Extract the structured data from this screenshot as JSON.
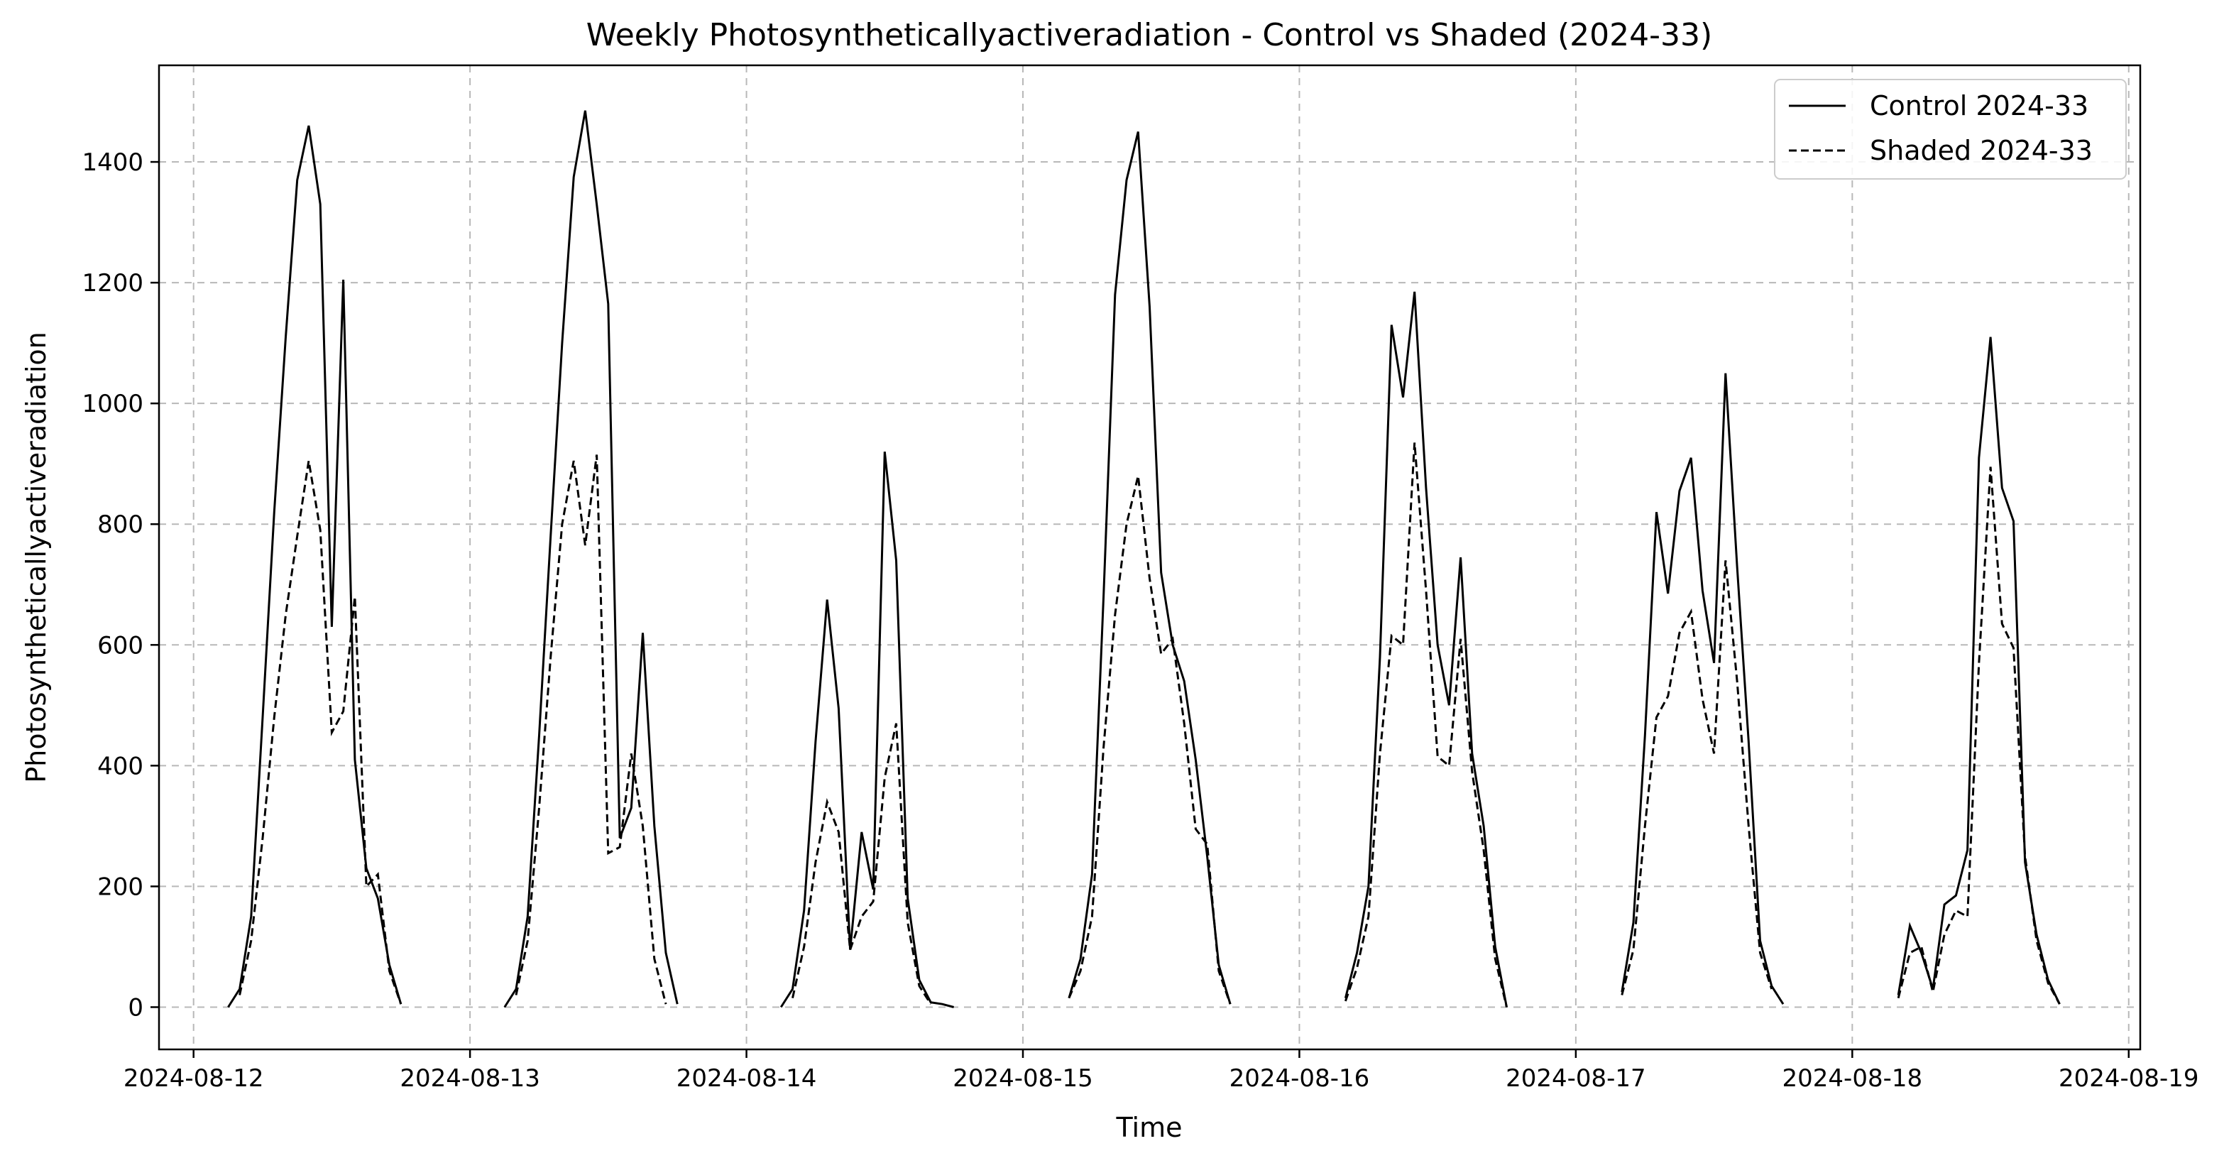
{
  "chart_data": {
    "type": "line",
    "title": "Weekly Photosyntheticallyactiveradiation - Control vs Shaded (2024-33)",
    "xlabel": "Time",
    "ylabel": "Photosyntheticallyactiveradiation",
    "xlim": [
      "2024-08-11T21:00",
      "2024-08-19T01:00"
    ],
    "ylim": [
      -70,
      1560
    ],
    "x_ticks": [
      "2024-08-12",
      "2024-08-13",
      "2024-08-14",
      "2024-08-15",
      "2024-08-16",
      "2024-08-17",
      "2024-08-18",
      "2024-08-19"
    ],
    "y_ticks": [
      0,
      200,
      400,
      600,
      800,
      1000,
      1200,
      1400
    ],
    "grid": true,
    "legend_position": "top-right",
    "series": [
      {
        "name": "Control 2024-33",
        "style": "solid",
        "color": "#000000",
        "segments": [
          [
            [
              "2024-08-12T03:00",
              0
            ],
            [
              "2024-08-12T04:00",
              30
            ],
            [
              "2024-08-12T05:00",
              150
            ],
            [
              "2024-08-12T06:00",
              480
            ],
            [
              "2024-08-12T07:00",
              820
            ],
            [
              "2024-08-12T08:00",
              1110
            ],
            [
              "2024-08-12T09:00",
              1370
            ],
            [
              "2024-08-12T10:00",
              1460
            ],
            [
              "2024-08-12T11:00",
              1330
            ],
            [
              "2024-08-12T12:00",
              630
            ],
            [
              "2024-08-12T13:00",
              1205
            ],
            [
              "2024-08-12T14:00",
              410
            ],
            [
              "2024-08-12T15:00",
              230
            ],
            [
              "2024-08-12T16:00",
              180
            ],
            [
              "2024-08-12T17:00",
              70
            ],
            [
              "2024-08-12T18:00",
              5
            ]
          ],
          [
            [
              "2024-08-13T03:00",
              0
            ],
            [
              "2024-08-13T04:00",
              30
            ],
            [
              "2024-08-13T05:00",
              150
            ],
            [
              "2024-08-13T06:00",
              450
            ],
            [
              "2024-08-13T07:00",
              780
            ],
            [
              "2024-08-13T08:00",
              1100
            ],
            [
              "2024-08-13T09:00",
              1375
            ],
            [
              "2024-08-13T10:00",
              1485
            ],
            [
              "2024-08-13T11:00",
              1330
            ],
            [
              "2024-08-13T12:00",
              1165
            ],
            [
              "2024-08-13T13:00",
              280
            ],
            [
              "2024-08-13T14:00",
              330
            ],
            [
              "2024-08-13T15:00",
              620
            ],
            [
              "2024-08-13T16:00",
              300
            ],
            [
              "2024-08-13T17:00",
              90
            ],
            [
              "2024-08-13T18:00",
              5
            ]
          ],
          [
            [
              "2024-08-14T03:00",
              0
            ],
            [
              "2024-08-14T04:00",
              30
            ],
            [
              "2024-08-14T05:00",
              160
            ],
            [
              "2024-08-14T06:00",
              440
            ],
            [
              "2024-08-14T07:00",
              675
            ],
            [
              "2024-08-14T08:00",
              495
            ],
            [
              "2024-08-14T09:00",
              95
            ],
            [
              "2024-08-14T10:00",
              290
            ],
            [
              "2024-08-14T11:00",
              195
            ],
            [
              "2024-08-14T12:00",
              920
            ],
            [
              "2024-08-14T13:00",
              740
            ],
            [
              "2024-08-14T14:00",
              180
            ],
            [
              "2024-08-14T15:00",
              45
            ],
            [
              "2024-08-14T16:00",
              8
            ],
            [
              "2024-08-14T17:00",
              5
            ],
            [
              "2024-08-14T18:00",
              0
            ]
          ],
          [
            [
              "2024-08-15T04:00",
              15
            ],
            [
              "2024-08-15T05:00",
              80
            ],
            [
              "2024-08-15T06:00",
              220
            ],
            [
              "2024-08-15T07:00",
              680
            ],
            [
              "2024-08-15T08:00",
              1180
            ],
            [
              "2024-08-15T09:00",
              1370
            ],
            [
              "2024-08-15T10:00",
              1450
            ],
            [
              "2024-08-15T11:00",
              1160
            ],
            [
              "2024-08-15T12:00",
              720
            ],
            [
              "2024-08-15T13:00",
              600
            ],
            [
              "2024-08-15T14:00",
              540
            ],
            [
              "2024-08-15T15:00",
              410
            ],
            [
              "2024-08-15T16:00",
              250
            ],
            [
              "2024-08-15T17:00",
              70
            ],
            [
              "2024-08-15T18:00",
              5
            ]
          ],
          [
            [
              "2024-08-16T04:00",
              15
            ],
            [
              "2024-08-16T05:00",
              90
            ],
            [
              "2024-08-16T06:00",
              200
            ],
            [
              "2024-08-16T07:00",
              580
            ],
            [
              "2024-08-16T08:00",
              1130
            ],
            [
              "2024-08-16T09:00",
              1010
            ],
            [
              "2024-08-16T10:00",
              1185
            ],
            [
              "2024-08-16T11:00",
              860
            ],
            [
              "2024-08-16T12:00",
              600
            ],
            [
              "2024-08-16T13:00",
              500
            ],
            [
              "2024-08-16T14:00",
              745
            ],
            [
              "2024-08-16T15:00",
              420
            ],
            [
              "2024-08-16T16:00",
              300
            ],
            [
              "2024-08-16T17:00",
              100
            ],
            [
              "2024-08-16T18:00",
              0
            ]
          ],
          [
            [
              "2024-08-17T04:00",
              25
            ],
            [
              "2024-08-17T05:00",
              140
            ],
            [
              "2024-08-17T06:00",
              450
            ],
            [
              "2024-08-17T07:00",
              820
            ],
            [
              "2024-08-17T08:00",
              685
            ],
            [
              "2024-08-17T09:00",
              855
            ],
            [
              "2024-08-17T10:00",
              910
            ],
            [
              "2024-08-17T11:00",
              690
            ],
            [
              "2024-08-17T12:00",
              570
            ],
            [
              "2024-08-17T13:00",
              1050
            ],
            [
              "2024-08-17T14:00",
              730
            ],
            [
              "2024-08-17T15:00",
              440
            ],
            [
              "2024-08-17T16:00",
              110
            ],
            [
              "2024-08-17T17:00",
              35
            ],
            [
              "2024-08-17T18:00",
              5
            ]
          ],
          [
            [
              "2024-08-18T04:00",
              20
            ],
            [
              "2024-08-18T05:00",
              135
            ],
            [
              "2024-08-18T06:00",
              90
            ],
            [
              "2024-08-18T07:00",
              30
            ],
            [
              "2024-08-18T08:00",
              170
            ],
            [
              "2024-08-18T09:00",
              185
            ],
            [
              "2024-08-18T10:00",
              260
            ],
            [
              "2024-08-18T11:00",
              910
            ],
            [
              "2024-08-18T12:00",
              1110
            ],
            [
              "2024-08-18T13:00",
              860
            ],
            [
              "2024-08-18T14:00",
              805
            ],
            [
              "2024-08-18T15:00",
              240
            ],
            [
              "2024-08-18T16:00",
              120
            ],
            [
              "2024-08-18T17:00",
              45
            ],
            [
              "2024-08-18T18:00",
              5
            ]
          ]
        ]
      },
      {
        "name": "Shaded 2024-33",
        "style": "dashed",
        "color": "#000000",
        "segments": [
          [
            [
              "2024-08-12T04:00",
              20
            ],
            [
              "2024-08-12T05:00",
              110
            ],
            [
              "2024-08-12T06:00",
              280
            ],
            [
              "2024-08-12T07:00",
              480
            ],
            [
              "2024-08-12T08:00",
              650
            ],
            [
              "2024-08-12T09:00",
              780
            ],
            [
              "2024-08-12T10:00",
              905
            ],
            [
              "2024-08-12T11:00",
              790
            ],
            [
              "2024-08-12T12:00",
              455
            ],
            [
              "2024-08-12T13:00",
              490
            ],
            [
              "2024-08-12T14:00",
              680
            ],
            [
              "2024-08-12T15:00",
              200
            ],
            [
              "2024-08-12T16:00",
              220
            ],
            [
              "2024-08-12T17:00",
              60
            ],
            [
              "2024-08-12T18:00",
              5
            ]
          ],
          [
            [
              "2024-08-13T04:00",
              20
            ],
            [
              "2024-08-13T05:00",
              110
            ],
            [
              "2024-08-13T06:00",
              330
            ],
            [
              "2024-08-13T07:00",
              580
            ],
            [
              "2024-08-13T08:00",
              800
            ],
            [
              "2024-08-13T09:00",
              905
            ],
            [
              "2024-08-13T10:00",
              765
            ],
            [
              "2024-08-13T11:00",
              915
            ],
            [
              "2024-08-13T12:00",
              255
            ],
            [
              "2024-08-13T13:00",
              265
            ],
            [
              "2024-08-13T14:00",
              420
            ],
            [
              "2024-08-13T15:00",
              300
            ],
            [
              "2024-08-13T16:00",
              80
            ],
            [
              "2024-08-13T17:00",
              5
            ]
          ],
          [
            [
              "2024-08-14T04:00",
              15
            ],
            [
              "2024-08-14T05:00",
              100
            ],
            [
              "2024-08-14T06:00",
              240
            ],
            [
              "2024-08-14T07:00",
              340
            ],
            [
              "2024-08-14T08:00",
              290
            ],
            [
              "2024-08-14T09:00",
              95
            ],
            [
              "2024-08-14T10:00",
              150
            ],
            [
              "2024-08-14T11:00",
              175
            ],
            [
              "2024-08-14T12:00",
              380
            ],
            [
              "2024-08-14T13:00",
              470
            ],
            [
              "2024-08-14T14:00",
              140
            ],
            [
              "2024-08-14T15:00",
              35
            ],
            [
              "2024-08-14T16:00",
              5
            ]
          ],
          [
            [
              "2024-08-15T04:00",
              15
            ],
            [
              "2024-08-15T05:00",
              60
            ],
            [
              "2024-08-15T06:00",
              150
            ],
            [
              "2024-08-15T07:00",
              430
            ],
            [
              "2024-08-15T08:00",
              650
            ],
            [
              "2024-08-15T09:00",
              800
            ],
            [
              "2024-08-15T10:00",
              880
            ],
            [
              "2024-08-15T11:00",
              710
            ],
            [
              "2024-08-15T12:00",
              585
            ],
            [
              "2024-08-15T13:00",
              610
            ],
            [
              "2024-08-15T14:00",
              470
            ],
            [
              "2024-08-15T15:00",
              295
            ],
            [
              "2024-08-15T16:00",
              270
            ],
            [
              "2024-08-15T17:00",
              60
            ],
            [
              "2024-08-15T18:00",
              5
            ]
          ],
          [
            [
              "2024-08-16T04:00",
              10
            ],
            [
              "2024-08-16T05:00",
              65
            ],
            [
              "2024-08-16T06:00",
              150
            ],
            [
              "2024-08-16T07:00",
              420
            ],
            [
              "2024-08-16T08:00",
              615
            ],
            [
              "2024-08-16T09:00",
              600
            ],
            [
              "2024-08-16T10:00",
              935
            ],
            [
              "2024-08-16T11:00",
              690
            ],
            [
              "2024-08-16T12:00",
              415
            ],
            [
              "2024-08-16T13:00",
              400
            ],
            [
              "2024-08-16T14:00",
              610
            ],
            [
              "2024-08-16T15:00",
              390
            ],
            [
              "2024-08-16T16:00",
              260
            ],
            [
              "2024-08-16T17:00",
              80
            ],
            [
              "2024-08-16T18:00",
              0
            ]
          ],
          [
            [
              "2024-08-17T04:00",
              20
            ],
            [
              "2024-08-17T05:00",
              95
            ],
            [
              "2024-08-17T06:00",
              300
            ],
            [
              "2024-08-17T07:00",
              480
            ],
            [
              "2024-08-17T08:00",
              515
            ],
            [
              "2024-08-17T09:00",
              620
            ],
            [
              "2024-08-17T10:00",
              655
            ],
            [
              "2024-08-17T11:00",
              510
            ],
            [
              "2024-08-17T12:00",
              420
            ],
            [
              "2024-08-17T13:00",
              740
            ],
            [
              "2024-08-17T14:00",
              540
            ],
            [
              "2024-08-17T15:00",
              300
            ],
            [
              "2024-08-17T16:00",
              90
            ],
            [
              "2024-08-17T17:00",
              30
            ]
          ],
          [
            [
              "2024-08-18T04:00",
              15
            ],
            [
              "2024-08-18T05:00",
              90
            ],
            [
              "2024-08-18T06:00",
              100
            ],
            [
              "2024-08-18T07:00",
              25
            ],
            [
              "2024-08-18T08:00",
              120
            ],
            [
              "2024-08-18T09:00",
              160
            ],
            [
              "2024-08-18T10:00",
              150
            ],
            [
              "2024-08-18T11:00",
              570
            ],
            [
              "2024-08-18T12:00",
              895
            ],
            [
              "2024-08-18T13:00",
              635
            ],
            [
              "2024-08-18T14:00",
              595
            ],
            [
              "2024-08-18T15:00",
              250
            ],
            [
              "2024-08-18T16:00",
              110
            ],
            [
              "2024-08-18T17:00",
              40
            ],
            [
              "2024-08-18T18:00",
              5
            ]
          ]
        ]
      }
    ]
  }
}
